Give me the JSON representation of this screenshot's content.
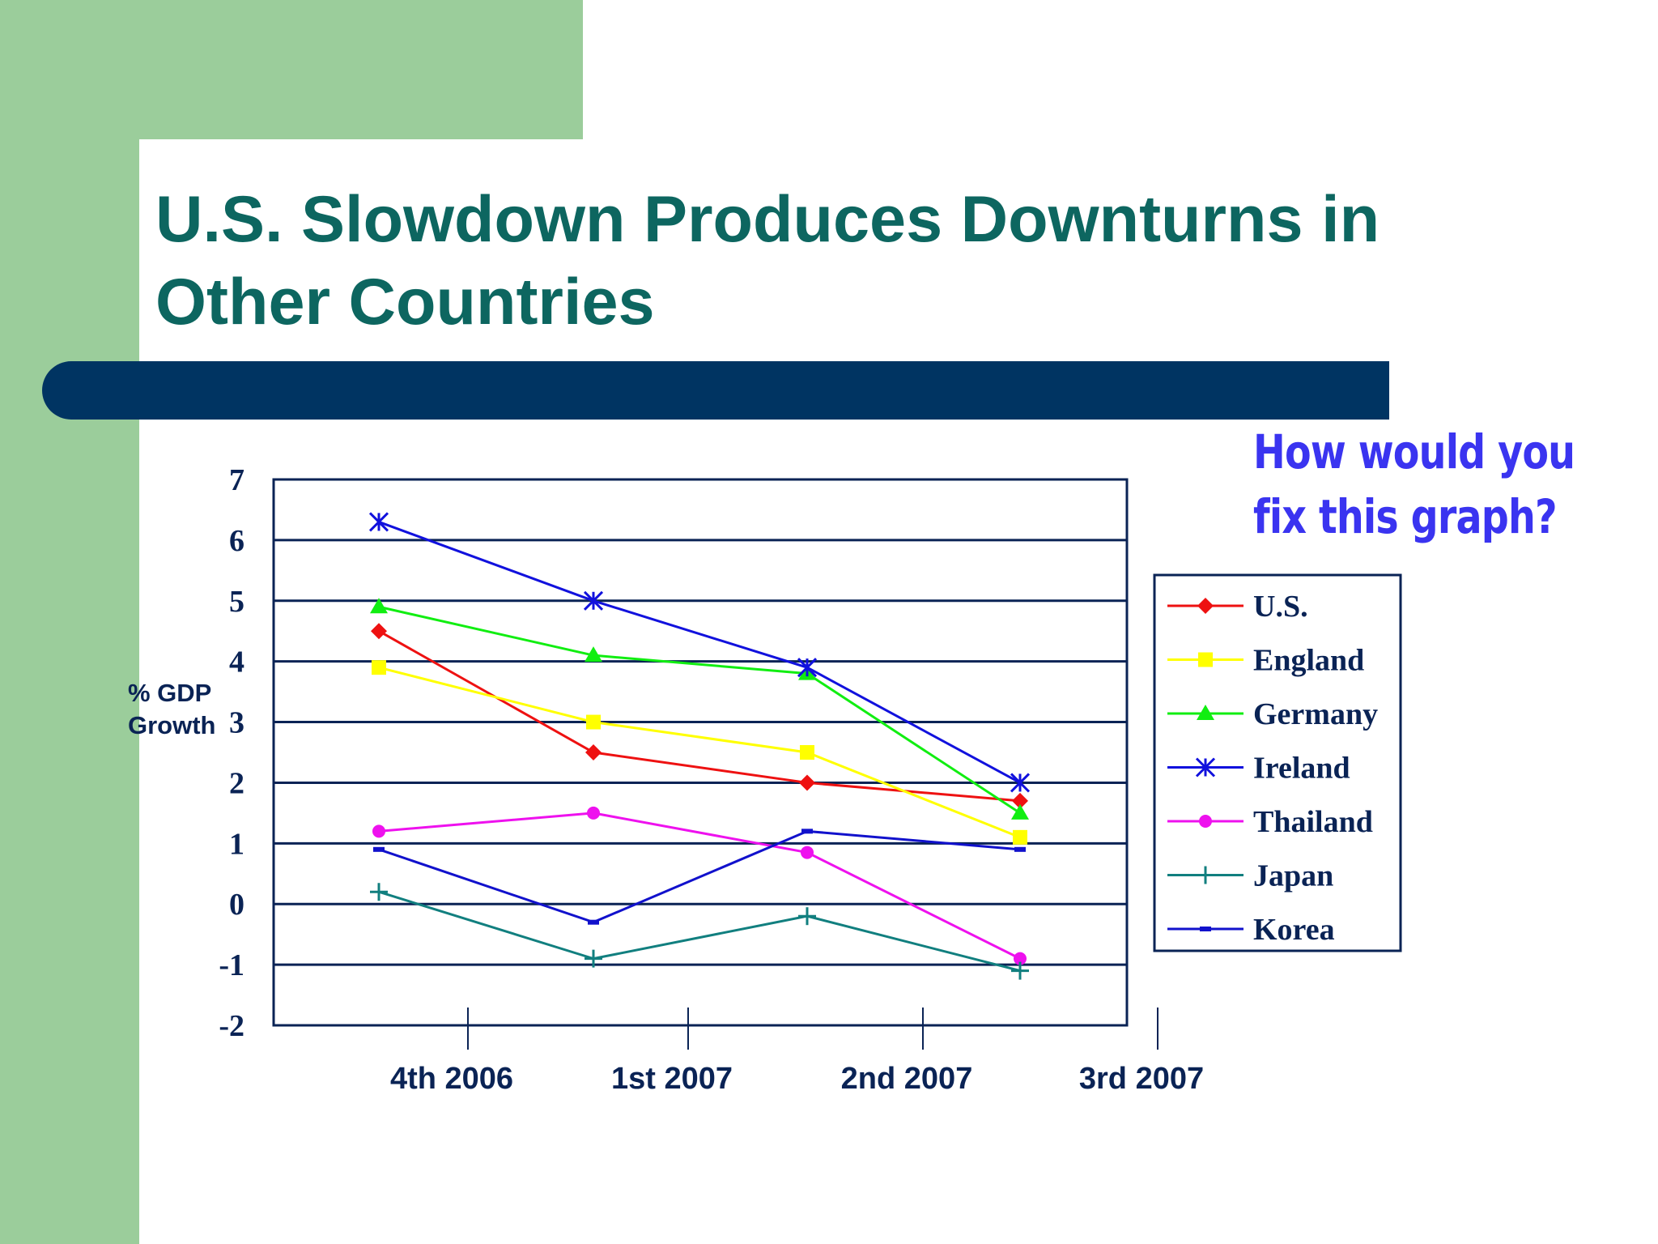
{
  "slide": {
    "title_line1": "U.S. Slowdown Produces Downturns in",
    "title_line2": "Other Countries",
    "callout_line1": "How would you",
    "callout_line2": "fix this graph?",
    "accent_colors": {
      "green": "#9bcd9b",
      "navy": "#003462",
      "title": "#0d6660",
      "callout": "#3a34f0"
    }
  },
  "chart_data": {
    "type": "line",
    "title": "",
    "xlabel": "",
    "ylabel_line1": "% GDP",
    "ylabel_line2": "Growth",
    "ylim": [
      -2,
      7
    ],
    "yticks": [
      -2,
      -1,
      0,
      1,
      2,
      3,
      4,
      5,
      6,
      7
    ],
    "grid": true,
    "legend_position": "right",
    "categories": [
      "4th 2006",
      "1st 2007",
      "2nd 2007",
      "3rd 2007"
    ],
    "series": [
      {
        "name": "U.S.",
        "color": "#ee1111",
        "marker": "diamond",
        "values": [
          4.5,
          2.5,
          2.0,
          1.7
        ]
      },
      {
        "name": "England",
        "color": "#ffff00",
        "marker": "square",
        "values": [
          3.9,
          3.0,
          2.5,
          1.1
        ]
      },
      {
        "name": "Germany",
        "color": "#11ee11",
        "marker": "triangle",
        "values": [
          4.9,
          4.1,
          3.8,
          1.5
        ]
      },
      {
        "name": "Ireland",
        "color": "#1111dd",
        "marker": "star",
        "values": [
          6.3,
          5.0,
          3.9,
          2.0
        ]
      },
      {
        "name": "Thailand",
        "color": "#ee11ee",
        "marker": "circle",
        "values": [
          1.2,
          1.5,
          0.85,
          -0.9
        ]
      },
      {
        "name": "Japan",
        "color": "#117f7f",
        "marker": "plus",
        "values": [
          0.2,
          -0.9,
          -0.2,
          -1.1
        ]
      },
      {
        "name": "Korea",
        "color": "#1111cc",
        "marker": "dash",
        "values": [
          0.9,
          -0.3,
          1.2,
          0.9
        ]
      }
    ]
  }
}
